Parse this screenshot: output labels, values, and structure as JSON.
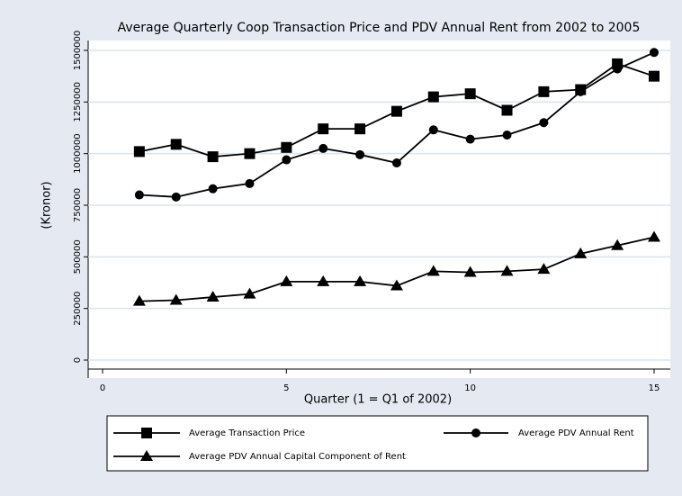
{
  "chart_data": {
    "type": "line",
    "title": "Average Quarterly Coop Transaction Price and PDV Annual Rent from 2002 to 2005",
    "x_label": "Quarter (1 = Q1 of 2002)",
    "y_label": "(Kronor)",
    "x": [
      1,
      2,
      3,
      4,
      5,
      6,
      7,
      8,
      9,
      10,
      11,
      12,
      13,
      14,
      15
    ],
    "series": [
      {
        "name": "Average Transaction Price",
        "color": "#000000",
        "marker": "square",
        "values": [
          1010000,
          1045000,
          985000,
          1000000,
          1030000,
          1120000,
          1120000,
          1205000,
          1275000,
          1290000,
          1210000,
          1300000,
          1310000,
          1435000,
          1375000
        ]
      },
      {
        "name": "Average PDV Annual Rent",
        "color": "#000000",
        "marker": "circle",
        "values": [
          800000,
          790000,
          830000,
          855000,
          970000,
          1025000,
          995000,
          955000,
          1115000,
          1070000,
          1090000,
          1150000,
          1300000,
          1410000,
          1490000
        ]
      },
      {
        "name": "Average PDV Annual Capital Component of Rent",
        "color": "#000000",
        "marker": "triangle",
        "values": [
          285000,
          290000,
          305000,
          320000,
          380000,
          380000,
          380000,
          360000,
          430000,
          425000,
          430000,
          440000,
          515000,
          555000,
          595000
        ]
      }
    ],
    "xlim": [
      0,
      15
    ],
    "xticks": [
      0,
      5,
      10,
      15
    ],
    "ylim": [
      0,
      1500000
    ],
    "yticks": [
      0,
      250000,
      500000,
      750000,
      1000000,
      1250000,
      1500000
    ],
    "grid": true
  }
}
